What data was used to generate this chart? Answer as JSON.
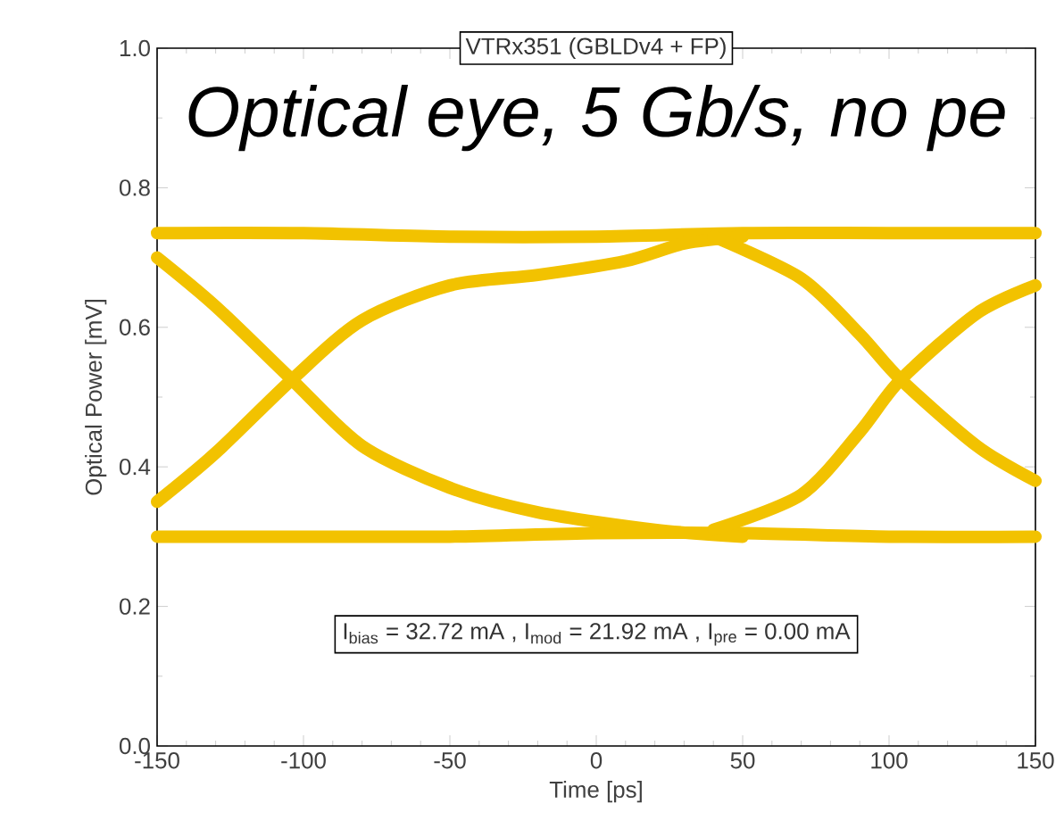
{
  "chart_data": {
    "type": "line",
    "title": "VTRx351 (GBLDv4 + FP)",
    "subtitle": "Optical eye, 5 Gb/s, no pe",
    "xlabel": "Time [ps]",
    "ylabel": "Optical Power [mV]",
    "annotations": [
      "I$_{bias}$ = 32.72 mA , I$_{mod}$ = 21.92 mA , I$_{pre}$ = 0.00 mA"
    ],
    "xlim": [
      -150,
      150
    ],
    "ylim": [
      0,
      1
    ],
    "xticks": [
      -150,
      -100,
      -50,
      0,
      50,
      100,
      150
    ],
    "yticks": [
      {
        "value": 0,
        "label": "0.0"
      },
      {
        "value": 0.2,
        "label": "0.2"
      },
      {
        "value": 0.4,
        "label": "0.4"
      },
      {
        "value": 0.6,
        "label": "0.6"
      },
      {
        "value": 0.8,
        "label": "0.8"
      },
      {
        "value": 1,
        "label": "1.0"
      }
    ],
    "grid": false,
    "series": [
      {
        "color": "#f2c200",
        "x": [
          -150,
          -100,
          -50,
          0,
          50,
          100,
          150
        ],
        "values": [
          0.735,
          0.735,
          0.73,
          0.73,
          0.735,
          0.735,
          0.735
        ]
      },
      {
        "color": "#f2c200",
        "x": [
          -150,
          -100,
          -50,
          0,
          50,
          100,
          150
        ],
        "values": [
          0.3,
          0.3,
          0.3,
          0.305,
          0.305,
          0.3,
          0.3
        ]
      },
      {
        "color": "#f2c200",
        "x": [
          -150,
          -130,
          -104,
          -80,
          -50,
          -20,
          20,
          50
        ],
        "values": [
          0.7,
          0.63,
          0.525,
          0.43,
          0.37,
          0.335,
          0.31,
          0.3
        ]
      },
      {
        "color": "#f2c200",
        "x": [
          -150,
          -130,
          -104,
          -80,
          -50,
          -20,
          10,
          30,
          50
        ],
        "values": [
          0.35,
          0.42,
          0.525,
          0.61,
          0.66,
          0.675,
          0.695,
          0.72,
          0.73
        ]
      },
      {
        "color": "#f2c200",
        "x": [
          40,
          70,
          90,
          104,
          130,
          150
        ],
        "values": [
          0.73,
          0.67,
          0.59,
          0.525,
          0.43,
          0.38
        ]
      },
      {
        "color": "#f2c200",
        "x": [
          40,
          70,
          90,
          104,
          130,
          150
        ],
        "values": [
          0.31,
          0.36,
          0.45,
          0.525,
          0.62,
          0.66
        ]
      }
    ]
  }
}
